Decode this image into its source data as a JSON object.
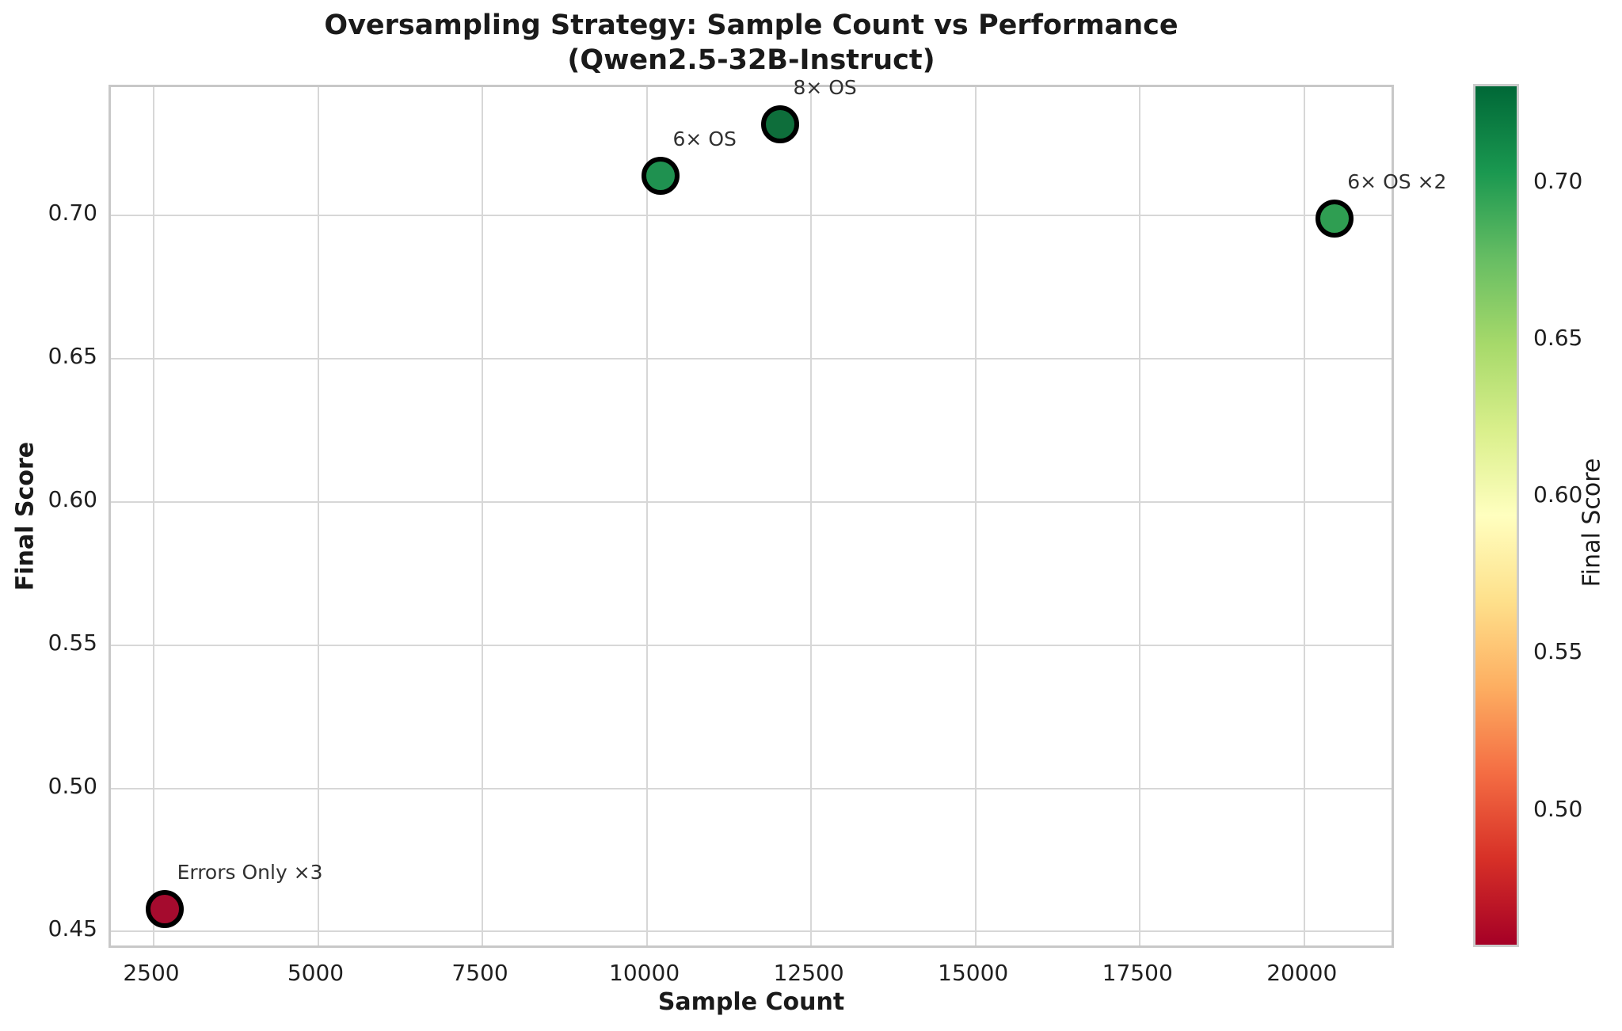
{
  "chart_data": {
    "type": "scatter",
    "title": "Oversampling Strategy: Sample Count vs Performance",
    "subtitle": "(Qwen2.5-32B-Instruct)",
    "xlabel": "Sample Count",
    "ylabel": "Final Score",
    "xlim": [
      1850,
      21400
    ],
    "ylim": [
      0.4435,
      0.7448
    ],
    "grid": true,
    "legend": "none",
    "x_ticks": [
      {
        "value": 2500,
        "label": "2500"
      },
      {
        "value": 5000,
        "label": "5000"
      },
      {
        "value": 7500,
        "label": "7500"
      },
      {
        "value": 10000,
        "label": "10000"
      },
      {
        "value": 12500,
        "label": "12500"
      },
      {
        "value": 15000,
        "label": "15000"
      },
      {
        "value": 17500,
        "label": "17500"
      },
      {
        "value": 20000,
        "label": "20000"
      }
    ],
    "y_ticks": [
      {
        "value": 0.45,
        "label": "0.45"
      },
      {
        "value": 0.5,
        "label": "0.50"
      },
      {
        "value": 0.55,
        "label": "0.55"
      },
      {
        "value": 0.6,
        "label": "0.60"
      },
      {
        "value": 0.65,
        "label": "0.65"
      },
      {
        "value": 0.7,
        "label": "0.70"
      }
    ],
    "points": [
      {
        "label": "Errors Only ×3",
        "x": 2700,
        "y": 0.457,
        "color": "#a50b2e"
      },
      {
        "label": "6× OS",
        "x": 10240,
        "y": 0.713,
        "color": "#1f9150"
      },
      {
        "label": "8× OS",
        "x": 12070,
        "y": 0.731,
        "color": "#0e6e3b"
      },
      {
        "label": "6× OS ×2",
        "x": 20500,
        "y": 0.698,
        "color": "#2f9e52"
      }
    ],
    "colorbar": {
      "label": "Final Score",
      "vmin": 0.456,
      "vmax": 0.731,
      "ticks": [
        {
          "value": 0.5,
          "label": "0.50"
        },
        {
          "value": 0.55,
          "label": "0.55"
        },
        {
          "value": 0.6,
          "label": "0.60"
        },
        {
          "value": 0.65,
          "label": "0.65"
        },
        {
          "value": 0.7,
          "label": "0.70"
        }
      ],
      "colormap": "RdYlGn",
      "gradient_stops": [
        "#a50026",
        "#d73027",
        "#f46d43",
        "#fdae61",
        "#fee08b",
        "#ffffbf",
        "#d9ef8b",
        "#a6d96a",
        "#66bd63",
        "#1a9850",
        "#006837"
      ]
    }
  }
}
